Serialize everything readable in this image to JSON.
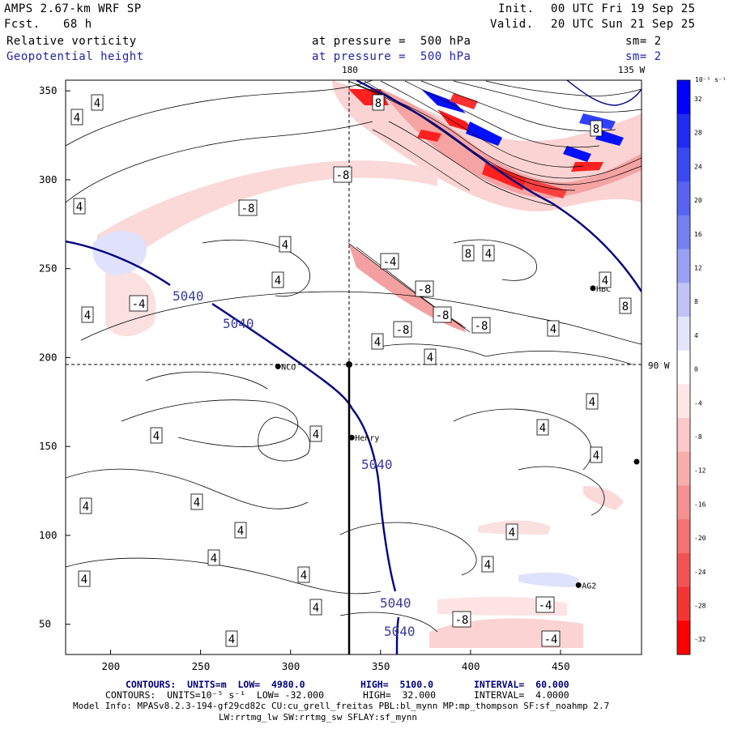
{
  "header": {
    "model": "AMPS 2.67-km WRF SP",
    "init_label": "Init.",
    "init_value": "00 UTC Fri 19 Sep 25",
    "fcst_label": "Fcst.",
    "fcst_value": "68 h",
    "valid_label": "Valid.",
    "valid_value": "20 UTC Sun 21 Sep 25",
    "field1": "Relative vorticity",
    "field1_level": "at pressure =  500 hPa",
    "field1_sm": "sm= 2",
    "field2": "Geopotential height",
    "field2_level": "at pressure =  500 hPa",
    "field2_sm": "sm= 2"
  },
  "map": {
    "meridian_top_label": "180",
    "meridian_top_right_label": "135 W",
    "parallel_label": "90 W",
    "x_ticks": [
      "200",
      "250",
      "300",
      "350",
      "400",
      "450"
    ],
    "y_ticks": [
      "350",
      "300",
      "250",
      "200",
      "150",
      "100",
      "50"
    ],
    "stations": [
      {
        "name": "NCO",
        "x": 293,
        "y": 195
      },
      {
        "name": "Henry",
        "x": 334,
        "y": 155
      },
      {
        "name": "HBC",
        "x": 468,
        "y": 239
      },
      {
        "name": "AG2",
        "x": 460,
        "y": 72
      }
    ],
    "height_contour_labels": [
      "5040",
      "5040",
      "5040",
      "5040",
      "5040"
    ],
    "vorticity_labels": [
      "4",
      "4",
      "4",
      "4",
      "4",
      "4",
      "4",
      "4",
      "4",
      "4",
      "4",
      "4",
      "4",
      "4",
      "4",
      "4",
      "4",
      "4",
      "4",
      "4",
      "4",
      "4",
      "4",
      "4",
      "4",
      "-8",
      "-8",
      "-4",
      "-8",
      "-8",
      "-8",
      "-8",
      "8",
      "8",
      "8",
      "8",
      "4",
      "-4",
      "-4",
      "-8",
      "-4"
    ]
  },
  "colorbar": {
    "unit": "10⁻⁵ s⁻¹",
    "levels": [
      "32",
      "28",
      "24",
      "20",
      "16",
      "12",
      "8",
      "4",
      "0",
      "-4",
      "-8",
      "-12",
      "-16",
      "-20",
      "-24",
      "-28",
      "-32"
    ],
    "colors": [
      "#0000ff",
      "#1f2cf2",
      "#3a49f0",
      "#5764f0",
      "#7480f2",
      "#9aa1f4",
      "#bfc3f8",
      "#e3e5fb",
      "#ffffff",
      "#ffe6e6",
      "#fbc9c9",
      "#f9aeae",
      "#f79090",
      "#f47373",
      "#f25454",
      "#f23434",
      "#ff0000"
    ]
  },
  "footer": {
    "line1_a": "CONTOURS:  UNITS=m  LOW=  4980.0",
    "line1_b": "HIGH=  5100.0",
    "line1_c": "INTERVAL=  60.000",
    "line2_a": "CONTOURS:  UNITS=10⁻⁵ s⁻¹  LOW= -32.000",
    "line2_b": "HIGH=  32.000",
    "line2_c": "INTERVAL=  4.0000",
    "model_info": "Model Info: MPASv8.2.3-194-gf29cd82c CU:cu_grell_freitas PBL:bl_mynn MP:mp_thompson SF:sf_noahmp 2.7",
    "model_info2": "LW:rrtmg_lw SW:rrtmg_sw SFLAY:sf_mynn"
  }
}
